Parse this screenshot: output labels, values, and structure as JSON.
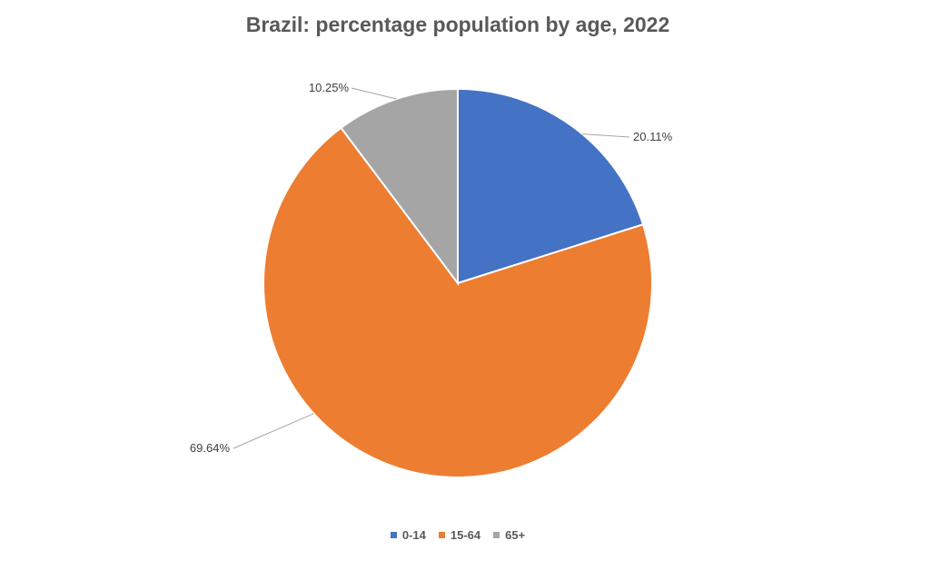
{
  "chart_data": {
    "type": "pie",
    "title": "Brazil: percentage population by age, 2022",
    "categories": [
      "0-14",
      "15-64",
      "65+"
    ],
    "values": [
      20.11,
      69.64,
      10.25
    ],
    "data_labels": [
      "20.11%",
      "69.64%",
      "10.25%"
    ],
    "colors": [
      "#4472C4",
      "#ED7D31",
      "#A5A5A5"
    ],
    "legend_position": "bottom",
    "start_angle": "12 o'clock, clockwise"
  }
}
